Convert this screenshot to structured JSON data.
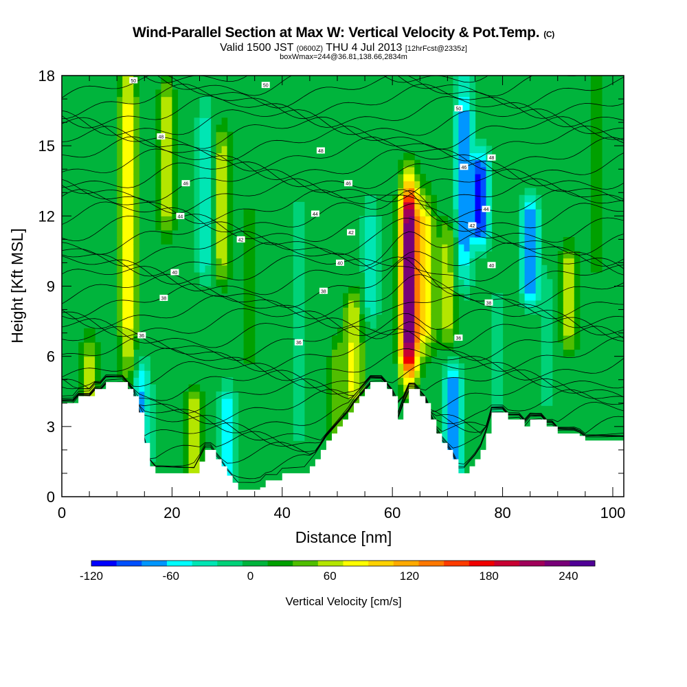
{
  "chart_data": {
    "type": "heatmap",
    "title": "Wind-Parallel Section at Max W: Vertical Velocity & Pot.Temp.",
    "title_mark": "(C)",
    "subtitle_prefix": "Valid 1500 JST",
    "subtitle_utc": "(0600Z)",
    "subtitle_date": "THU 4 Jul 2013",
    "subtitle_fcst": "[12hrFcst@2335z]",
    "subtitle2": "boxWmax=244@36.81,138.66,2834m",
    "xlabel": "Distance [nm]",
    "ylabel": "Height [Kft MSL]",
    "xlim": [
      0,
      102
    ],
    "ylim": [
      0,
      18
    ],
    "x_ticks": [
      "0",
      "20",
      "40",
      "60",
      "80",
      "100"
    ],
    "y_ticks": [
      "0",
      "3",
      "6",
      "9",
      "12",
      "15",
      "18"
    ],
    "colorbar": {
      "label": "Vertical Velocity [cm/s]",
      "range": [
        -120,
        260
      ],
      "ticks": [
        "-120",
        "-60",
        "0",
        "60",
        "120",
        "180",
        "240"
      ],
      "colors": [
        "#0000ff",
        "#0050ff",
        "#0096ff",
        "#00ffff",
        "#00e6b4",
        "#00d278",
        "#00b43c",
        "#00a000",
        "#50be00",
        "#b4e600",
        "#ffff00",
        "#ffd200",
        "#ffaa00",
        "#ff7800",
        "#ff3c00",
        "#f00000",
        "#c80032",
        "#a0005a",
        "#780078",
        "#500096"
      ]
    },
    "velocity_bands": [
      {
        "x": 5,
        "w": 55,
        "z": [
          1.5,
          6
        ]
      },
      {
        "x": 12,
        "w": 75,
        "z": [
          6,
          18
        ]
      },
      {
        "x": 14.5,
        "w": -70,
        "z": [
          1.5,
          5
        ]
      },
      {
        "x": 19,
        "w": 60,
        "z": [
          12,
          17
        ]
      },
      {
        "x": 24,
        "w": 55,
        "z": [
          1,
          4
        ]
      },
      {
        "x": 26,
        "w": -50,
        "z": [
          10,
          16
        ]
      },
      {
        "x": 29,
        "w": 60,
        "z": [
          10,
          15
        ]
      },
      {
        "x": 30,
        "w": -60,
        "z": [
          1,
          4
        ]
      },
      {
        "x": 34,
        "w": 25,
        "z": [
          6,
          12
        ]
      },
      {
        "x": 43,
        "w": -30,
        "z": [
          3,
          12
        ]
      },
      {
        "x": 50,
        "w": 40,
        "z": [
          2,
          6
        ]
      },
      {
        "x": 53,
        "w": 70,
        "z": [
          4.5,
          8
        ]
      },
      {
        "x": 56,
        "w": -40,
        "z": [
          8,
          12
        ]
      },
      {
        "x": 63,
        "w": 244,
        "z": [
          6,
          12.5
        ]
      },
      {
        "x": 66,
        "w": 80,
        "z": [
          7,
          12
        ]
      },
      {
        "x": 70,
        "w": 55,
        "z": [
          7,
          11
        ]
      },
      {
        "x": 71,
        "w": -90,
        "z": [
          1,
          5
        ]
      },
      {
        "x": 73,
        "w": -80,
        "z": [
          10,
          17
        ]
      },
      {
        "x": 76,
        "w": -110,
        "z": [
          11.5,
          14
        ]
      },
      {
        "x": 79,
        "w": -30,
        "z": [
          4,
          8
        ]
      },
      {
        "x": 85,
        "w": -90,
        "z": [
          9,
          12
        ]
      },
      {
        "x": 88,
        "w": -20,
        "z": [
          4,
          9
        ]
      },
      {
        "x": 92,
        "w": 60,
        "z": [
          7,
          10
        ]
      },
      {
        "x": 97,
        "w": 25,
        "z": [
          10,
          18
        ]
      }
    ],
    "terrain": {
      "x": [
        0,
        3,
        6,
        8,
        10,
        12,
        13,
        14,
        15,
        16,
        17,
        18,
        19,
        20,
        21,
        22,
        23,
        24,
        25,
        26,
        27,
        28,
        29,
        30,
        31,
        32,
        33,
        34,
        35,
        36,
        37,
        38,
        39,
        40,
        41,
        42,
        43,
        44,
        45,
        46,
        47,
        48,
        49,
        50,
        51,
        52,
        53,
        54,
        55,
        56,
        57,
        58,
        59,
        60,
        61,
        62,
        63,
        64,
        65,
        66,
        67,
        68,
        69,
        70,
        71,
        72,
        73,
        74,
        75,
        76,
        77,
        78,
        79,
        80,
        81,
        82,
        83,
        84,
        85,
        86,
        87,
        88,
        89,
        90,
        91,
        92,
        93,
        94,
        95,
        96,
        97,
        98,
        99,
        100,
        102
      ],
      "z": [
        4,
        4.3,
        4.6,
        4.9,
        4.9,
        4.6,
        4.3,
        3.6,
        2.3,
        1.3,
        1.0,
        1.0,
        1.0,
        1.0,
        1.0,
        1.0,
        1.0,
        1.0,
        1.5,
        2.0,
        2.0,
        1.6,
        1.3,
        0.9,
        0.6,
        0.3,
        0.3,
        0.3,
        0.3,
        0.4,
        0.7,
        0.7,
        0.7,
        1.0,
        1.0,
        1.0,
        1.0,
        1.0,
        1.3,
        1.6,
        2.0,
        2.4,
        2.7,
        3.0,
        3.3,
        3.6,
        4.0,
        4.3,
        4.6,
        4.9,
        4.9,
        4.9,
        4.6,
        4.3,
        3.3,
        4.0,
        4.6,
        4.6,
        4.3,
        4.0,
        3.3,
        2.7,
        2.3,
        2.0,
        1.6,
        1.0,
        1.0,
        1.3,
        1.6,
        2.0,
        2.7,
        3.6,
        3.6,
        3.6,
        3.3,
        3.3,
        3.3,
        3.0,
        3.3,
        3.3,
        3.3,
        3.0,
        3.0,
        2.7,
        2.7,
        2.7,
        2.7,
        2.6,
        2.4,
        2.4,
        2.4,
        2.4,
        2.4,
        2.4,
        2.4
      ]
    },
    "theta_labels": [
      {
        "x": 13,
        "z": 17.8,
        "text": "50"
      },
      {
        "x": 37,
        "z": 17.6,
        "text": "50"
      },
      {
        "x": 72,
        "z": 16.6,
        "text": "50"
      },
      {
        "x": 18,
        "z": 15.4,
        "text": "48"
      },
      {
        "x": 47,
        "z": 14.8,
        "text": "48"
      },
      {
        "x": 78,
        "z": 14.5,
        "text": "48"
      },
      {
        "x": 22.5,
        "z": 13.4,
        "text": "46"
      },
      {
        "x": 52,
        "z": 13.4,
        "text": "46"
      },
      {
        "x": 73,
        "z": 14.1,
        "text": "46"
      },
      {
        "x": 21.5,
        "z": 12.0,
        "text": "44"
      },
      {
        "x": 46,
        "z": 12.1,
        "text": "44"
      },
      {
        "x": 77,
        "z": 12.3,
        "text": "44"
      },
      {
        "x": 32.5,
        "z": 11.0,
        "text": "42"
      },
      {
        "x": 52.5,
        "z": 11.3,
        "text": "42"
      },
      {
        "x": 74.5,
        "z": 11.6,
        "text": "42"
      },
      {
        "x": 20.5,
        "z": 9.6,
        "text": "40"
      },
      {
        "x": 50.5,
        "z": 10.0,
        "text": "40"
      },
      {
        "x": 78,
        "z": 9.9,
        "text": "40"
      },
      {
        "x": 18.5,
        "z": 8.5,
        "text": "38"
      },
      {
        "x": 47.5,
        "z": 8.8,
        "text": "38"
      },
      {
        "x": 77.5,
        "z": 8.3,
        "text": "38"
      },
      {
        "x": 14.5,
        "z": 6.9,
        "text": "36"
      },
      {
        "x": 43,
        "z": 6.6,
        "text": "36"
      },
      {
        "x": 72,
        "z": 6.8,
        "text": "36"
      }
    ]
  }
}
